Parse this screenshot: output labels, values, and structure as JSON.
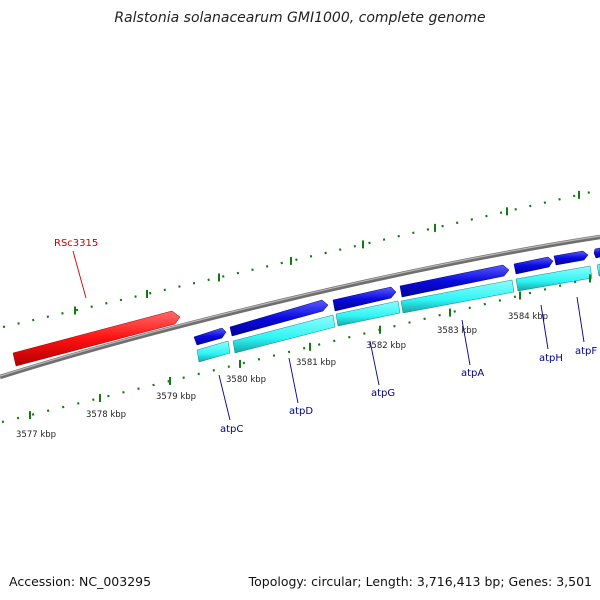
{
  "title": "Ralstonia solanacearum GMI1000, complete genome",
  "footer": {
    "accession": "Accession: NC_003295",
    "summary": "Topology: circular; Length: 3,716,413 bp; Genes: 3,501"
  },
  "colors": {
    "backbone": "#808080",
    "ticks": "#127a12",
    "gene_forward": "#0a0ae0",
    "gene_reverse": "#ff1010",
    "cds_track": "#2ff5f5",
    "gene_label": "#00008b",
    "reverse_label": "#cc0000"
  },
  "scale": {
    "ticks": [
      {
        "label": "3577 kbp"
      },
      {
        "label": "3578 kbp"
      },
      {
        "label": "3579 kbp"
      },
      {
        "label": "3580 kbp"
      },
      {
        "label": "3581 kbp"
      },
      {
        "label": "3582 kbp"
      },
      {
        "label": "3583 kbp"
      },
      {
        "label": "3584 kbp"
      }
    ]
  },
  "genes": [
    {
      "name": "RSc3315",
      "strand": "reverse"
    },
    {
      "name": "atpC",
      "strand": "forward"
    },
    {
      "name": "atpD",
      "strand": "forward"
    },
    {
      "name": "atpG",
      "strand": "forward"
    },
    {
      "name": "atpA",
      "strand": "forward"
    },
    {
      "name": "atpH",
      "strand": "forward"
    },
    {
      "name": "atpF",
      "strand": "forward"
    }
  ]
}
